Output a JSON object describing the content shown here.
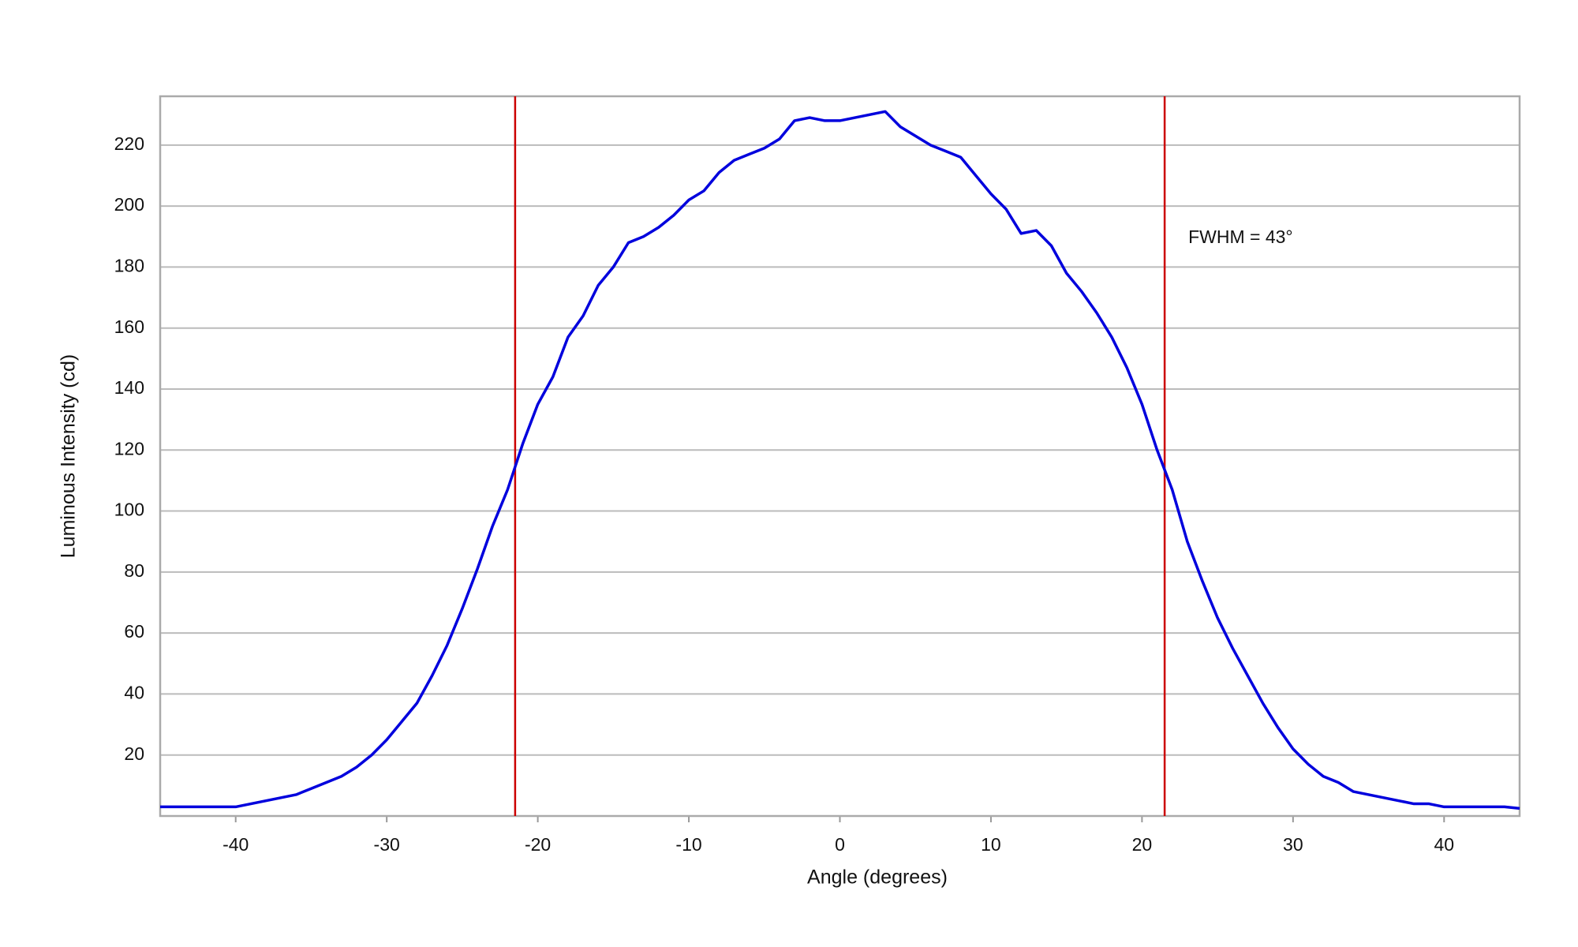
{
  "chart_data": {
    "type": "line",
    "x_label": "Angle (degrees)",
    "y_label": "Luminous Intensity (cd)",
    "annotation": "FWHM = 43°",
    "x": [
      -45,
      -44,
      -43,
      -42,
      -41,
      -40,
      -39,
      -38,
      -37,
      -36,
      -35,
      -34,
      -33,
      -32,
      -31,
      -30,
      -29,
      -28,
      -27,
      -26,
      -25,
      -24,
      -23,
      -22,
      -21,
      -20,
      -19,
      -18,
      -17,
      -16,
      -15,
      -14,
      -13,
      -12,
      -11,
      -10,
      -9,
      -8,
      -7,
      -6,
      -5,
      -4,
      -3,
      -2,
      -1,
      0,
      1,
      2,
      3,
      4,
      5,
      6,
      7,
      8,
      9,
      10,
      11,
      12,
      13,
      14,
      15,
      16,
      17,
      18,
      19,
      20,
      21,
      22,
      23,
      24,
      25,
      26,
      27,
      28,
      29,
      30,
      31,
      32,
      33,
      34,
      35,
      36,
      37,
      38,
      39,
      40,
      41,
      42,
      43,
      44,
      45
    ],
    "series": [
      {
        "color": "#0000dd",
        "values": [
          3,
          3,
          3,
          3,
          3,
          3,
          4,
          5,
          6,
          7,
          9,
          11,
          13,
          16,
          20,
          25,
          31,
          37,
          46,
          56,
          68,
          81,
          95,
          107,
          122,
          135,
          144,
          157,
          164,
          174,
          180,
          188,
          190,
          193,
          197,
          202,
          205,
          211,
          215,
          217,
          219,
          222,
          228,
          229,
          228,
          228,
          229,
          230,
          231,
          226,
          223,
          220,
          218,
          216,
          210,
          204,
          199,
          191,
          192,
          187,
          178,
          172,
          165,
          157,
          147,
          135,
          120,
          107,
          90,
          77,
          65,
          55,
          46,
          37,
          29,
          22,
          17,
          13,
          11,
          8,
          7,
          6,
          5,
          4,
          4,
          3,
          3,
          3,
          3,
          3,
          2.5
        ]
      }
    ],
    "vlines": [
      -21.5,
      21.5
    ],
    "vline_color": "#cc0000",
    "xlim": [
      -45,
      45
    ],
    "ylim": [
      0,
      236
    ],
    "xticks": [
      -40,
      -30,
      -20,
      -10,
      0,
      10,
      20,
      30,
      40
    ],
    "yticks": [
      20,
      40,
      60,
      80,
      100,
      120,
      140,
      160,
      180,
      200,
      220
    ],
    "grid": true
  }
}
